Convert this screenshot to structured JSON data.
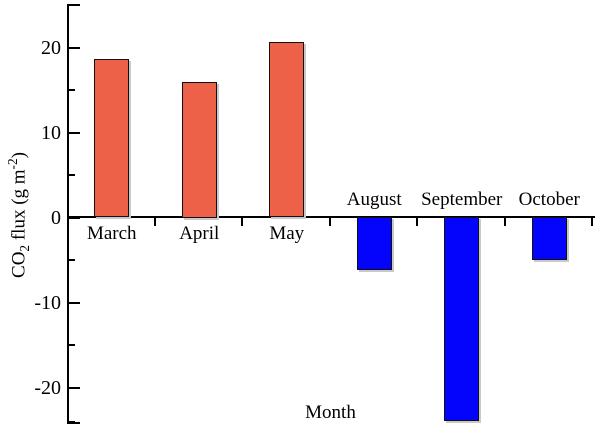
{
  "chart_data": {
    "type": "bar",
    "categories": [
      "March",
      "April",
      "May",
      "August",
      "September",
      "October"
    ],
    "values": [
      18.6,
      16.0,
      20.6,
      -6.3,
      -24.0,
      -5.1
    ],
    "title": "",
    "xlabel": "Month",
    "ylabel": "CO2 flux (g m-2)",
    "ylabel_parts": {
      "pre": "CO",
      "sub": "2",
      "mid": " flux (g m",
      "sup": "-2",
      "post": ")"
    },
    "ylim": [
      -25,
      25
    ],
    "yticks_major": [
      {
        "value": 20,
        "label": "20"
      },
      {
        "value": 10,
        "label": "10"
      },
      {
        "value": 0,
        "label": "0"
      },
      {
        "value": -10,
        "label": "-10"
      },
      {
        "value": -20,
        "label": "-20"
      }
    ],
    "yticks_minor": [
      25,
      15,
      5,
      -5,
      -15,
      -25
    ],
    "grid": "off",
    "legend": "none",
    "layout_notes": "x-axis drawn at y=0; positive-month labels below the zero line, negative-month labels above it",
    "colors": {
      "positive_bar": "#ec6148",
      "negative_bar": "#0404fc",
      "bar_border": "#111111",
      "axis": "#000000",
      "background": "#ffffff"
    }
  }
}
